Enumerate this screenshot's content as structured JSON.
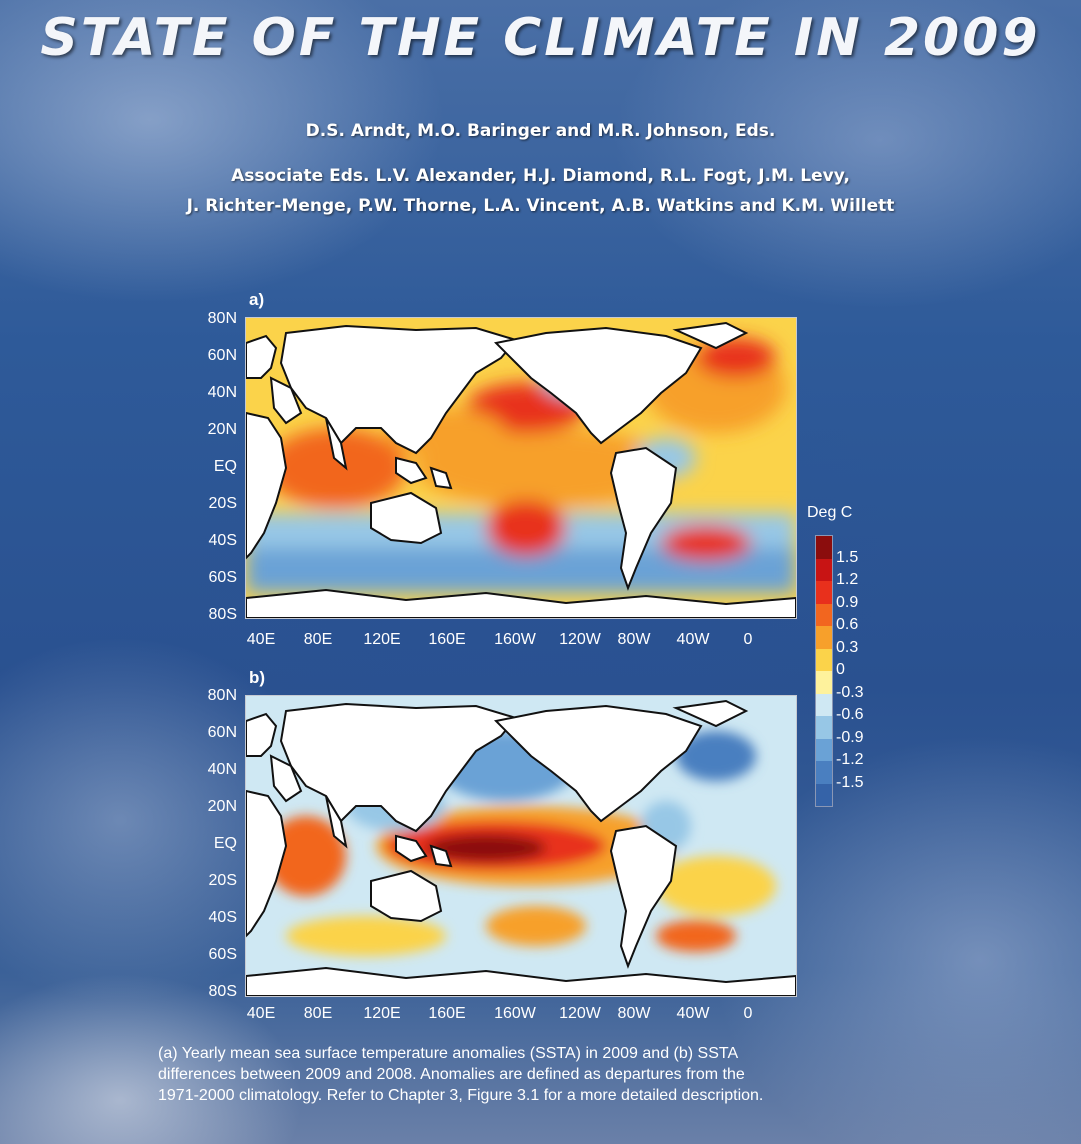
{
  "cover": {
    "title": "STATE OF THE CLIMATE IN 2009",
    "editors": "D.S. Arndt, M.O. Baringer and M.R. Johnson, Eds.",
    "associate_editors": [
      "Associate Eds. L.V. Alexander, H.J. Diamond, R.L. Fogt, J.M. Levy,",
      "J. Richter-Menge, P.W. Thorne, L.A. Vincent,  A.B. Watkins and K.M. Willett"
    ]
  },
  "figure": {
    "panels": [
      {
        "letter": "a)"
      },
      {
        "letter": "b)"
      }
    ],
    "lat_labels": [
      "80N",
      "60N",
      "40N",
      "20N",
      "EQ",
      "20S",
      "40S",
      "60S",
      "80S"
    ],
    "lon_labels": [
      "40E",
      "80E",
      "120E",
      "160E",
      "160W",
      "120W",
      "80W",
      "40W",
      "0"
    ],
    "legend": {
      "title": "Deg C",
      "ticks": [
        "1.5",
        "1.2",
        "0.9",
        "0.6",
        "0.3",
        "0",
        "-0.3",
        "-0.6",
        "-0.9",
        "-1.2",
        "-1.5"
      ],
      "colors": [
        "#8b0d0d",
        "#c81414",
        "#e8301c",
        "#f2661f",
        "#f7a02b",
        "#fbd34a",
        "#fef29c",
        "#cfe8f3",
        "#97c7e6",
        "#6aa2d6",
        "#4a7fc0",
        "#3563a8"
      ]
    },
    "caption": [
      "(a) Yearly mean sea surface temperature anomalies (SSTA) in 2009 and (b) SSTA",
      "differences between 2009 and 2008. Anomalies are defined as departures from the",
      "1971-2000 climatology.  Refer to Chapter 3, Figure 3.1 for a more detailed description."
    ]
  },
  "chart_data": [
    {
      "type": "heatmap",
      "title": "a)",
      "xlabel": "",
      "ylabel": "",
      "x_tick_labels": [
        "40E",
        "80E",
        "120E",
        "160E",
        "160W",
        "120W",
        "80W",
        "40W",
        "0"
      ],
      "y_tick_labels": [
        "80N",
        "60N",
        "40N",
        "20N",
        "EQ",
        "20S",
        "40S",
        "60S",
        "80S"
      ],
      "color_scale": {
        "label": "Deg C",
        "min": -1.5,
        "max": 1.5
      },
      "description_values": {
        "tropical_pacific": 0.6,
        "north_pacific_center": 0.9,
        "southern_ocean": -0.6,
        "north_atlantic": 0.6,
        "indian_ocean": 0.6
      }
    },
    {
      "type": "heatmap",
      "title": "b)",
      "xlabel": "",
      "ylabel": "",
      "x_tick_labels": [
        "40E",
        "80E",
        "120E",
        "160E",
        "160W",
        "120W",
        "80W",
        "40W",
        "0"
      ],
      "y_tick_labels": [
        "80N",
        "60N",
        "40N",
        "20N",
        "EQ",
        "20S",
        "40S",
        "60S",
        "80S"
      ],
      "color_scale": {
        "label": "Deg C",
        "min": -1.5,
        "max": 1.5
      },
      "description_values": {
        "central_equatorial_pacific": 1.5,
        "north_pacific": -0.6,
        "southern_ocean": 0.3,
        "north_atlantic": -0.6,
        "indian_ocean": 0.6
      }
    }
  ]
}
